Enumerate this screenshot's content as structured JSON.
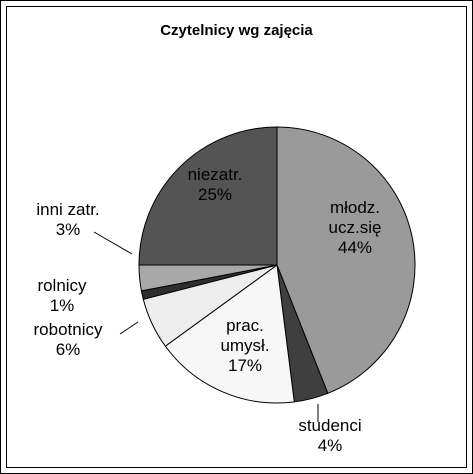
{
  "chart_data": {
    "type": "pie",
    "title": "Czytelnicy wg zajęcia",
    "categories": [
      "młodz. ucz.się",
      "studenci",
      "prac. umysł.",
      "robotnicy",
      "rolnicy",
      "inni zatr.",
      "niezatr."
    ],
    "values": [
      44,
      4,
      17,
      6,
      1,
      3,
      25
    ],
    "value_labels": [
      "44%",
      "4%",
      "17%",
      "6%",
      "1%",
      "3%",
      "25%"
    ],
    "colors": [
      "#9a9a9a",
      "#3f3f3f",
      "#f7f7f7",
      "#ededed",
      "#2e2e2e",
      "#a8a8a8",
      "#545454"
    ]
  }
}
